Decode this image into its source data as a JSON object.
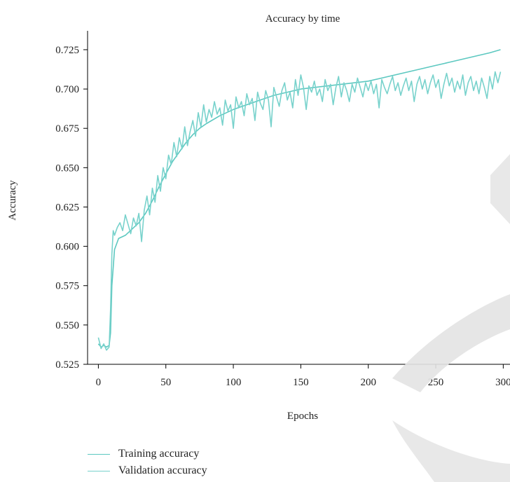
{
  "chart_data": {
    "type": "line",
    "title": "Accuracy by time",
    "xlabel": "Epochs",
    "ylabel": "Accuracy",
    "xlim": [
      -8,
      305
    ],
    "ylim": [
      0.525,
      0.737
    ],
    "xticks": [
      0,
      50,
      100,
      150,
      200,
      250,
      300
    ],
    "yticks": [
      0.525,
      0.55,
      0.575,
      0.6,
      0.625,
      0.65,
      0.675,
      0.7,
      0.725
    ],
    "ytick_labels": [
      "0.525",
      "0.550",
      "0.575",
      "0.600",
      "0.625",
      "0.650",
      "0.675",
      "0.700",
      "0.725"
    ],
    "grid": false,
    "legend_position": "bottom-left",
    "series": [
      {
        "name": "Training accuracy",
        "color": "#5cc8c0",
        "x": [
          0,
          2,
          4,
          6,
          8,
          9,
          10,
          12,
          15,
          20,
          25,
          30,
          35,
          40,
          45,
          50,
          55,
          60,
          65,
          70,
          75,
          80,
          90,
          100,
          110,
          120,
          130,
          140,
          150,
          160,
          170,
          180,
          190,
          200,
          210,
          220,
          230,
          240,
          250,
          260,
          270,
          280,
          290,
          298
        ],
        "y": [
          0.538,
          0.536,
          0.537,
          0.536,
          0.537,
          0.545,
          0.575,
          0.598,
          0.605,
          0.607,
          0.611,
          0.615,
          0.621,
          0.629,
          0.638,
          0.646,
          0.654,
          0.66,
          0.666,
          0.671,
          0.675,
          0.678,
          0.683,
          0.687,
          0.69,
          0.693,
          0.696,
          0.698,
          0.7,
          0.701,
          0.702,
          0.703,
          0.704,
          0.705,
          0.707,
          0.709,
          0.711,
          0.713,
          0.715,
          0.717,
          0.719,
          0.721,
          0.723,
          0.725
        ]
      },
      {
        "name": "Validation accuracy",
        "color": "#78d2cc",
        "x": [
          0,
          2,
          4,
          6,
          8,
          9,
          10,
          11,
          12,
          14,
          16,
          18,
          20,
          22,
          24,
          26,
          28,
          30,
          32,
          34,
          36,
          38,
          40,
          42,
          44,
          46,
          48,
          50,
          52,
          54,
          56,
          58,
          60,
          62,
          64,
          66,
          68,
          70,
          72,
          74,
          76,
          78,
          80,
          82,
          84,
          86,
          88,
          90,
          92,
          94,
          96,
          98,
          100,
          102,
          104,
          106,
          108,
          110,
          112,
          114,
          116,
          118,
          120,
          122,
          124,
          126,
          128,
          130,
          132,
          134,
          136,
          138,
          140,
          142,
          144,
          146,
          148,
          150,
          152,
          154,
          156,
          158,
          160,
          162,
          164,
          166,
          168,
          170,
          172,
          174,
          176,
          178,
          180,
          182,
          184,
          186,
          188,
          190,
          192,
          194,
          196,
          198,
          200,
          202,
          204,
          206,
          208,
          210,
          212,
          214,
          216,
          218,
          220,
          222,
          224,
          226,
          228,
          230,
          232,
          234,
          236,
          238,
          240,
          242,
          244,
          246,
          248,
          250,
          252,
          254,
          256,
          258,
          260,
          262,
          264,
          266,
          268,
          270,
          272,
          274,
          276,
          278,
          280,
          282,
          284,
          286,
          288,
          290,
          292,
          294,
          296,
          298
        ],
        "y": [
          0.542,
          0.535,
          0.538,
          0.534,
          0.536,
          0.56,
          0.595,
          0.61,
          0.607,
          0.612,
          0.615,
          0.61,
          0.62,
          0.614,
          0.608,
          0.618,
          0.613,
          0.621,
          0.603,
          0.623,
          0.632,
          0.62,
          0.637,
          0.628,
          0.645,
          0.635,
          0.65,
          0.643,
          0.658,
          0.652,
          0.666,
          0.657,
          0.669,
          0.662,
          0.676,
          0.664,
          0.673,
          0.68,
          0.67,
          0.685,
          0.676,
          0.69,
          0.679,
          0.687,
          0.682,
          0.692,
          0.684,
          0.688,
          0.677,
          0.693,
          0.686,
          0.69,
          0.675,
          0.695,
          0.688,
          0.692,
          0.683,
          0.697,
          0.69,
          0.694,
          0.68,
          0.698,
          0.691,
          0.687,
          0.699,
          0.693,
          0.676,
          0.701,
          0.695,
          0.689,
          0.699,
          0.704,
          0.693,
          0.698,
          0.688,
          0.706,
          0.696,
          0.709,
          0.701,
          0.687,
          0.702,
          0.698,
          0.705,
          0.696,
          0.7,
          0.692,
          0.706,
          0.699,
          0.703,
          0.69,
          0.701,
          0.708,
          0.695,
          0.704,
          0.699,
          0.692,
          0.703,
          0.698,
          0.707,
          0.701,
          0.695,
          0.704,
          0.699,
          0.705,
          0.697,
          0.703,
          0.688,
          0.706,
          0.701,
          0.697,
          0.703,
          0.708,
          0.699,
          0.704,
          0.696,
          0.702,
          0.707,
          0.699,
          0.705,
          0.692,
          0.703,
          0.708,
          0.7,
          0.706,
          0.697,
          0.704,
          0.709,
          0.701,
          0.706,
          0.694,
          0.703,
          0.71,
          0.702,
          0.707,
          0.698,
          0.705,
          0.7,
          0.709,
          0.696,
          0.704,
          0.708,
          0.699,
          0.705,
          0.697,
          0.707,
          0.701,
          0.694,
          0.708,
          0.7,
          0.711,
          0.704,
          0.711
        ]
      }
    ]
  }
}
